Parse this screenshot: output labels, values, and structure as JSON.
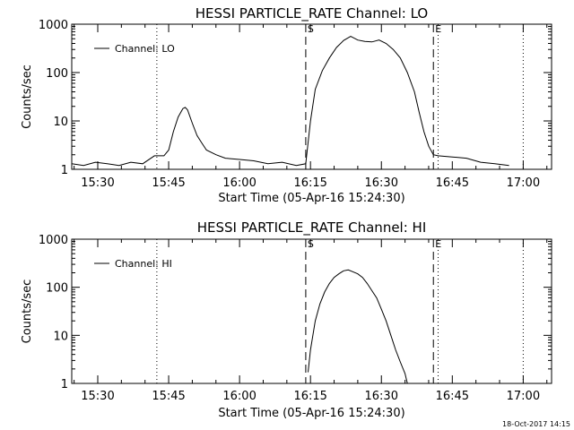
{
  "footer": {
    "timestamp": "18-Oct-2017 14:15"
  },
  "chart_data": [
    {
      "type": "line",
      "title": "HESSI PARTICLE_RATE Channel: LO",
      "xlabel": "Start Time (05-Apr-16 15:24:30)",
      "ylabel": "Counts/sec",
      "y_scale": "log",
      "ylim": [
        1,
        1000
      ],
      "xlim": [
        "15:24:30",
        "17:06:00"
      ],
      "x_ticks": [
        "15:30",
        "15:45",
        "16:00",
        "16:15",
        "16:30",
        "16:45",
        "17:00"
      ],
      "y_ticks": [
        "1",
        "10",
        "100",
        "1000"
      ],
      "legend": {
        "position": "top-left",
        "entries": [
          "Channel: LO"
        ]
      },
      "markers": [
        {
          "label": "S",
          "time": "16:14:00",
          "style": "dashed"
        },
        {
          "label": "E",
          "time": "16:41:00",
          "style": "dashed"
        }
      ],
      "dotted_lines": [
        "15:42:30",
        "16:42:00",
        "17:00:00"
      ],
      "series": [
        {
          "name": "Channel: LO",
          "x": [
            "15:24:30",
            "15:27:00",
            "15:29:30",
            "15:32:00",
            "15:34:30",
            "15:37:00",
            "15:39:30",
            "15:42:00",
            "15:44:00",
            "15:45:00",
            "15:46:00",
            "15:47:00",
            "15:48:00",
            "15:48:30",
            "15:49:00",
            "15:50:00",
            "15:51:00",
            "15:52:00",
            "15:53:00",
            "15:55:00",
            "15:57:00",
            "16:00:00",
            "16:03:00",
            "16:06:00",
            "16:09:00",
            "16:12:00",
            "16:14:00",
            "16:15:00",
            "16:16:00",
            "16:17:30",
            "16:19:00",
            "16:20:30",
            "16:22:00",
            "16:23:30",
            "16:25:00",
            "16:26:30",
            "16:28:00",
            "16:29:30",
            "16:31:00",
            "16:32:30",
            "16:34:00",
            "16:35:30",
            "16:37:00",
            "16:38:00",
            "16:39:00",
            "16:40:00",
            "16:41:00",
            "16:42:00",
            "16:45:00",
            "16:48:00",
            "16:51:00",
            "16:54:00",
            "16:57:00"
          ],
          "values": [
            1.3,
            1.2,
            1.4,
            1.3,
            1.2,
            1.4,
            1.3,
            1.9,
            1.9,
            2.5,
            6,
            12,
            18,
            19,
            17,
            9,
            5,
            3.5,
            2.5,
            2,
            1.7,
            1.6,
            1.5,
            1.3,
            1.4,
            1.2,
            1.3,
            10,
            45,
            110,
            200,
            330,
            460,
            560,
            470,
            440,
            430,
            470,
            400,
            300,
            200,
            100,
            40,
            15,
            6,
            3,
            2,
            1.9,
            1.8,
            1.7,
            1.4,
            1.3,
            1.2
          ]
        }
      ]
    },
    {
      "type": "line",
      "title": "HESSI PARTICLE_RATE Channel: HI",
      "xlabel": "Start Time (05-Apr-16 15:24:30)",
      "ylabel": "Counts/sec",
      "y_scale": "log",
      "ylim": [
        1,
        1000
      ],
      "xlim": [
        "15:24:30",
        "17:06:00"
      ],
      "x_ticks": [
        "15:30",
        "15:45",
        "16:00",
        "16:15",
        "16:30",
        "16:45",
        "17:00"
      ],
      "y_ticks": [
        "1",
        "10",
        "100",
        "1000"
      ],
      "legend": {
        "position": "top-left",
        "entries": [
          "Channel: HI"
        ]
      },
      "markers": [
        {
          "label": "S",
          "time": "16:14:00",
          "style": "dashed"
        },
        {
          "label": "E",
          "time": "16:41:00",
          "style": "dashed"
        }
      ],
      "dotted_lines": [
        "15:42:30",
        "16:42:00",
        "17:00:00"
      ],
      "series": [
        {
          "name": "Channel: HI",
          "x": [
            "16:14:30",
            "16:15:00",
            "16:16:00",
            "16:17:00",
            "16:18:00",
            "16:19:00",
            "16:20:00",
            "16:21:00",
            "16:22:00",
            "16:23:00",
            "16:24:00",
            "16:25:00",
            "16:26:00",
            "16:27:00",
            "16:28:00",
            "16:29:00",
            "16:30:00",
            "16:31:00",
            "16:32:00",
            "16:33:00",
            "16:34:00",
            "16:35:00",
            "16:35:30"
          ],
          "values": [
            1.7,
            5,
            20,
            45,
            80,
            120,
            160,
            190,
            220,
            230,
            210,
            190,
            160,
            120,
            85,
            60,
            35,
            20,
            10,
            5,
            2.8,
            1.6,
            1
          ]
        }
      ]
    }
  ]
}
